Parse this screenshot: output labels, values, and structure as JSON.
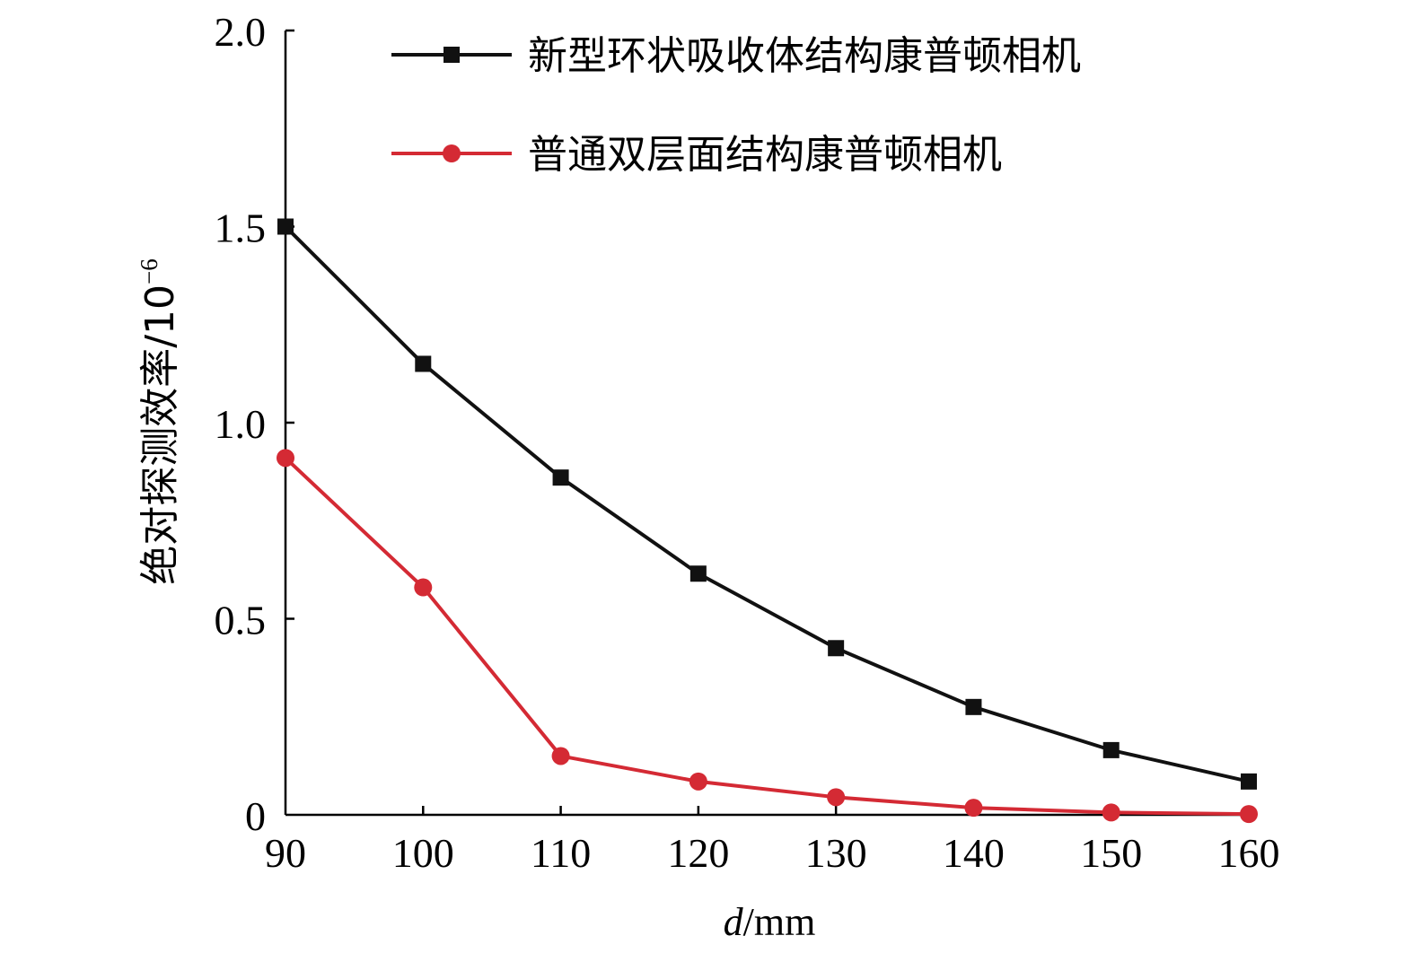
{
  "chart_data": {
    "type": "line",
    "title": "",
    "xlabel": {
      "prefix": "d",
      "suffix": "/mm"
    },
    "ylabel": {
      "text": "绝对探测效率/10",
      "exponent": "−6"
    },
    "x": [
      90,
      100,
      110,
      120,
      130,
      140,
      150,
      160
    ],
    "xlim": [
      90,
      160
    ],
    "ylim": [
      0,
      2.0
    ],
    "xticks": [
      "90",
      "100",
      "110",
      "120",
      "130",
      "140",
      "150",
      "160"
    ],
    "yticks": [
      {
        "value": 0,
        "label": "0"
      },
      {
        "value": 0.5,
        "label": "0.5"
      },
      {
        "value": 1.0,
        "label": "1.0"
      },
      {
        "value": 1.5,
        "label": "1.5"
      },
      {
        "value": 2.0,
        "label": "2.0"
      }
    ],
    "grid": false,
    "legend_position": "top-right",
    "series": [
      {
        "name": "新型环状吸收体结构康普顿相机",
        "color": "#111111",
        "marker": "square",
        "values": [
          1.5,
          1.15,
          0.86,
          0.615,
          0.425,
          0.275,
          0.165,
          0.085
        ]
      },
      {
        "name": "普通双层面结构康普顿相机",
        "color": "#d42a34",
        "marker": "circle",
        "values": [
          0.91,
          0.58,
          0.15,
          0.085,
          0.045,
          0.018,
          0.006,
          0.002
        ]
      }
    ]
  }
}
